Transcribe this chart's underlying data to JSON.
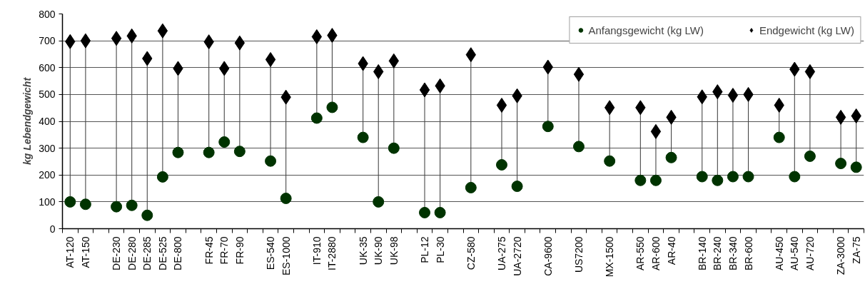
{
  "chart_data": {
    "type": "scatter",
    "ylabel": "kg Lebendgewicht",
    "categories": [
      "AT-120",
      "AT-150",
      null,
      "DE-230",
      "DE-280",
      "DE-285",
      "DE-525",
      "DE-800",
      null,
      "FR-45",
      "FR-70",
      "FR-90",
      null,
      "ES-540",
      "ES-1000",
      null,
      "IT-910",
      "IT-2880",
      null,
      "UK-35",
      "UK-90",
      "UK-98",
      null,
      "PL-12",
      "PL-30",
      null,
      "CZ-580",
      null,
      "UA-275",
      "UA-2720",
      null,
      "CA-9600",
      null,
      "US7200",
      null,
      "MX-1500",
      null,
      "AR-550",
      "AR-600",
      "AR-40",
      null,
      "BR-140",
      "BR-240",
      "BR-340",
      "BR-600",
      null,
      "AU-450",
      "AU-540",
      "AU-720",
      null,
      "ZA-3000",
      "ZA-75"
    ],
    "series": [
      {
        "name": "Anfangsgewicht (kg LW)",
        "color": "#003300",
        "marker": "circle",
        "values": [
          100,
          91,
          null,
          82,
          87,
          50,
          193,
          284,
          null,
          284,
          323,
          288,
          null,
          252,
          113,
          null,
          412,
          452,
          null,
          340,
          100,
          300,
          null,
          60,
          60,
          null,
          153,
          null,
          238,
          158,
          null,
          381,
          null,
          306,
          null,
          252,
          null,
          180,
          180,
          265,
          null,
          194,
          180,
          194,
          194,
          null,
          340,
          194,
          270,
          null,
          243,
          229
        ]
      },
      {
        "name": "Endgewicht (kg LW)",
        "color": "#000000",
        "marker": "diamond",
        "values": [
          697,
          700,
          null,
          709,
          718,
          634,
          737,
          597,
          null,
          696,
          597,
          692,
          null,
          630,
          490,
          null,
          715,
          720,
          null,
          615,
          585,
          625,
          null,
          517,
          532,
          null,
          648,
          null,
          460,
          495,
          null,
          602,
          null,
          575,
          null,
          451,
          null,
          451,
          362,
          415,
          null,
          491,
          510,
          497,
          500,
          null,
          460,
          594,
          585,
          null,
          415,
          420
        ]
      }
    ],
    "ylim": [
      0,
      800
    ],
    "yticks": [
      0,
      100,
      200,
      300,
      400,
      500,
      600,
      700,
      800
    ],
    "grid": "y",
    "legend": "top right"
  }
}
